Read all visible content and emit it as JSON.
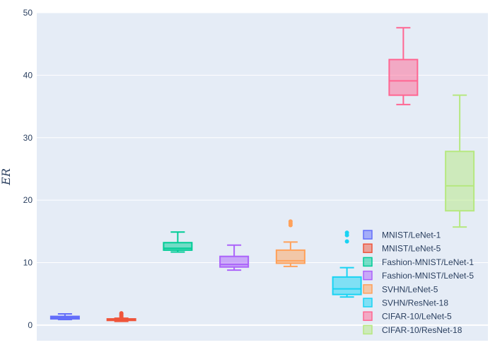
{
  "chart_data": {
    "type": "box",
    "title": "",
    "xlabel": "",
    "ylabel": "ER",
    "ylim": [
      -2.5,
      50
    ],
    "y_ticks": [
      0,
      10,
      20,
      30,
      40,
      50
    ],
    "grid": true,
    "legend_position": "bottom-right",
    "series": [
      {
        "name": "MNIST/LeNet-1",
        "color": "#636efa",
        "min": 0.9,
        "q1": 1.0,
        "median": 1.2,
        "q3": 1.4,
        "max": 1.8,
        "outliers": []
      },
      {
        "name": "MNIST/LeNet-5",
        "color": "#ef553b",
        "min": 0.6,
        "q1": 0.75,
        "median": 0.85,
        "q3": 1.0,
        "max": 1.1,
        "outliers": [
          1.3,
          1.5,
          1.7,
          1.9
        ]
      },
      {
        "name": "Fashion-MNIST/LeNet-1",
        "color": "#00cc96",
        "min": 11.7,
        "q1": 12.0,
        "median": 12.3,
        "q3": 13.2,
        "max": 14.9,
        "outliers": []
      },
      {
        "name": "Fashion-MNIST/LeNet-5",
        "color": "#ab63fa",
        "min": 8.8,
        "q1": 9.3,
        "median": 9.7,
        "q3": 11.0,
        "max": 12.8,
        "outliers": []
      },
      {
        "name": "SVHN/LeNet-5",
        "color": "#ffa15a",
        "min": 9.4,
        "q1": 9.9,
        "median": 10.3,
        "q3": 12.0,
        "max": 13.3,
        "outliers": [
          16.0,
          16.3,
          16.6
        ]
      },
      {
        "name": "SVHN/ResNet-18",
        "color": "#19d3f3",
        "min": 4.5,
        "q1": 4.9,
        "median": 5.8,
        "q3": 7.7,
        "max": 9.2,
        "outliers": [
          13.4,
          14.4,
          14.8
        ]
      },
      {
        "name": "CIFAR-10/LeNet-5",
        "color": "#ff6692",
        "min": 35.3,
        "q1": 36.8,
        "median": 39.1,
        "q3": 42.5,
        "max": 47.6,
        "outliers": []
      },
      {
        "name": "CIFAR-10/ResNet-18",
        "color": "#b6e880",
        "min": 15.7,
        "q1": 18.3,
        "median": 22.3,
        "q3": 27.8,
        "max": 36.8,
        "outliers": []
      }
    ]
  }
}
